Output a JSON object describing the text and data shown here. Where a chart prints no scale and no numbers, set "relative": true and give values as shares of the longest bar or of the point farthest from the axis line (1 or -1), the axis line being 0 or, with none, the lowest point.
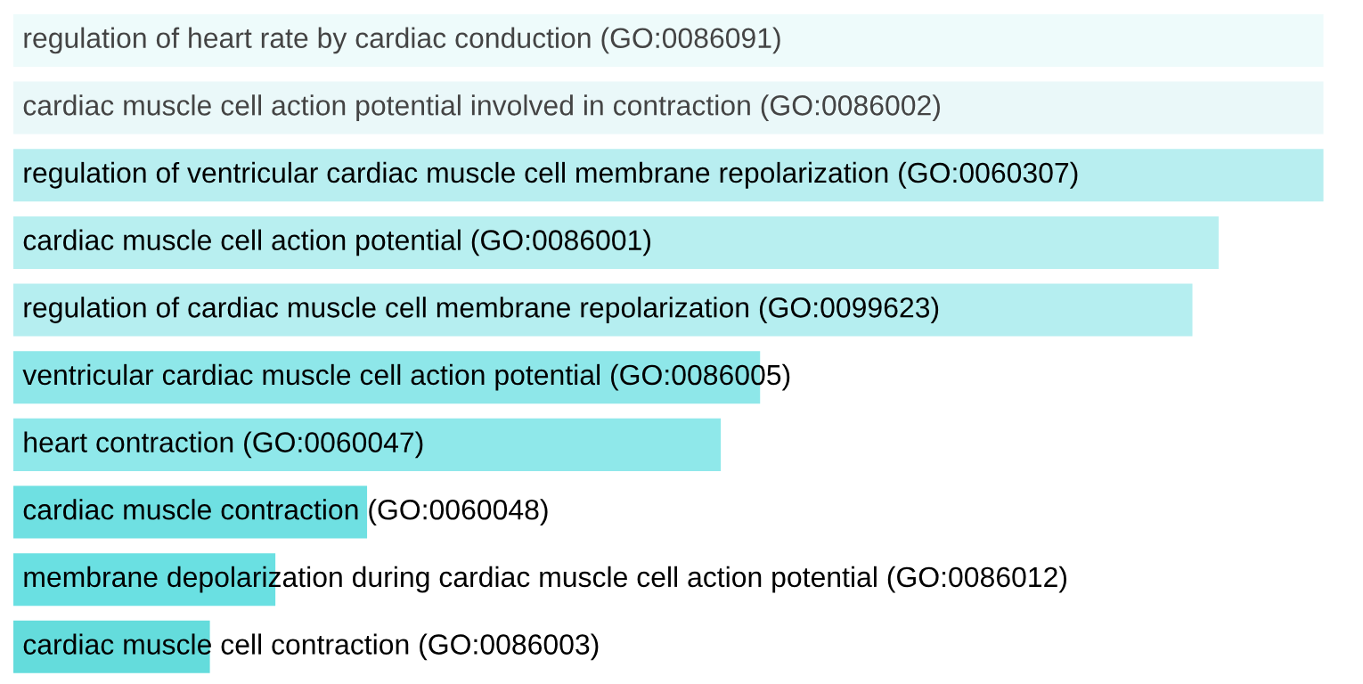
{
  "chart_data": {
    "type": "bar",
    "orientation": "horizontal",
    "relative": true,
    "categories": [
      "regulation of heart rate by cardiac conduction (GO:0086091)",
      "cardiac muscle cell action potential involved in contraction (GO:0086002)",
      "regulation of ventricular cardiac muscle cell membrane repolarization (GO:0060307)",
      "cardiac muscle cell action potential (GO:0086001)",
      "regulation of cardiac muscle cell membrane repolarization (GO:0099623)",
      "ventricular cardiac muscle cell action potential (GO:0086005)",
      "heart contraction (GO:0060047)",
      "cardiac muscle contraction (GO:0060048)",
      "membrane depolarization during cardiac muscle cell action potential (GO:0086012)",
      "cardiac muscle cell contraction (GO:0086003)"
    ],
    "values": [
      1.0,
      1.0,
      1.0,
      0.92,
      0.9,
      0.57,
      0.54,
      0.27,
      0.2,
      0.15
    ],
    "colors": [
      "#eefbfb",
      "#eaf8f9",
      "#b8eef0",
      "#b8eff0",
      "#b5eef0",
      "#8ee7e9",
      "#8fe8ea",
      "#6fe0e2",
      "#6ae0e2",
      "#64dcdc"
    ]
  }
}
